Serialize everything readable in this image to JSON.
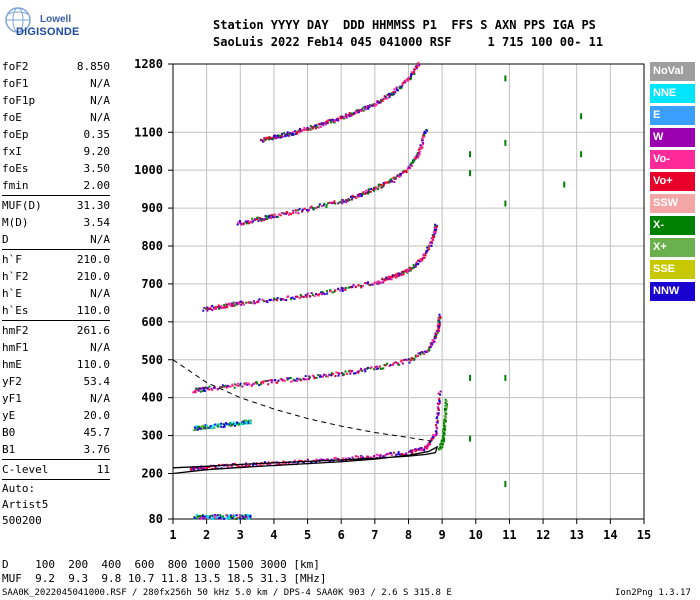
{
  "logo": {
    "line1": "Lowell",
    "line2": "DIGISONDE"
  },
  "header": {
    "row1": "Station YYYY DAY  DDD HHMMSS P1  FFS S AXN PPS IGA PS",
    "row2": "SaoLuis 2022 Feb14 045 041000 RSF     1 715 100 00- 11"
  },
  "parameters": [
    [
      {
        "label": "foF2",
        "value": "8.850"
      },
      {
        "label": "foF1",
        "value": "N/A"
      },
      {
        "label": "foF1p",
        "value": "N/A"
      },
      {
        "label": "foE",
        "value": "N/A"
      },
      {
        "label": "foEp",
        "value": "0.35"
      },
      {
        "label": "fxI",
        "value": "9.20"
      },
      {
        "label": "foEs",
        "value": "3.50"
      },
      {
        "label": "fmin",
        "value": "2.00"
      }
    ],
    [
      {
        "label": "MUF(D)",
        "value": "31.30"
      },
      {
        "label": "M(D)",
        "value": "3.54"
      },
      {
        "label": "D",
        "value": "N/A"
      }
    ],
    [
      {
        "label": "h`F",
        "value": "210.0"
      },
      {
        "label": "h`F2",
        "value": "210.0"
      },
      {
        "label": "h`E",
        "value": "N/A"
      },
      {
        "label": "h`Es",
        "value": "110.0"
      }
    ],
    [
      {
        "label": "hmF2",
        "value": "261.6"
      },
      {
        "label": "hmF1",
        "value": "N/A"
      },
      {
        "label": "hmE",
        "value": "110.0"
      },
      {
        "label": "yF2",
        "value": "53.4"
      },
      {
        "label": "yF1",
        "value": "N/A"
      },
      {
        "label": "yE",
        "value": "20.0"
      },
      {
        "label": "B0",
        "value": "45.7"
      },
      {
        "label": "B1",
        "value": "3.76"
      }
    ],
    [
      {
        "label": "C-level",
        "value": "11"
      }
    ]
  ],
  "auto": {
    "line1": "Auto:",
    "line2": "Artist5",
    "line3": "500200"
  },
  "legend": [
    {
      "label": "NoVal",
      "color": "#9e9e9e"
    },
    {
      "label": "NNE",
      "color": "#00e5ff"
    },
    {
      "label": "E",
      "color": "#3aa0ff"
    },
    {
      "label": "W",
      "color": "#9b00b0"
    },
    {
      "label": "Vo-",
      "color": "#ff2a9a"
    },
    {
      "label": "Vo+",
      "color": "#e8002a"
    },
    {
      "label": "SSW",
      "color": "#f4a6a6"
    },
    {
      "label": "X-",
      "color": "#008000"
    },
    {
      "label": "X+",
      "color": "#6ab04c"
    },
    {
      "label": "SSE",
      "color": "#c8c800"
    },
    {
      "label": "NNW",
      "color": "#1a00d0"
    }
  ],
  "muf_table": {
    "row1": "D    100  200  400  600  800 1000 1500 3000 [km]",
    "row2": "MUF  9.2  9.3  9.8 10.7 11.8 13.5 18.5 31.3 [MHz]"
  },
  "footer": {
    "left": "SAA0K_2022045041000.RSF / 280fx256h 50 kHz 5.0 km / DPS-4 SAA0K 903 / 2.6 S 315.8 E",
    "right": "Ion2Png 1.3.17"
  },
  "chart_data": {
    "type": "scatter",
    "title": "",
    "xlabel": "",
    "ylabel": "",
    "xlim": [
      1,
      15
    ],
    "ylim": [
      80,
      1280
    ],
    "x_ticks": [
      "1",
      "2",
      "3",
      "4",
      "5",
      "6",
      "7",
      "8",
      "9",
      "10",
      "11",
      "12",
      "13",
      "14",
      "15"
    ],
    "y_ticks": [
      "80",
      "200",
      "300",
      "400",
      "500",
      "600",
      "700",
      "800",
      "900",
      "1000",
      "1100",
      "1280"
    ],
    "traces": [
      {
        "name": "F2 1st hop",
        "x": [
          1.5,
          2,
          3,
          4,
          5,
          6,
          7,
          8,
          8.5,
          8.8,
          8.9
        ],
        "y": [
          215,
          218,
          224,
          229,
          234,
          240,
          247,
          258,
          270,
          310,
          420
        ]
      },
      {
        "name": "F2 1st hop X",
        "x": [
          8.9,
          9.0,
          9.05,
          9.1
        ],
        "y": [
          265,
          290,
          330,
          400
        ]
      },
      {
        "name": "F2 2nd hop",
        "x": [
          1.6,
          2,
          3,
          4,
          5,
          6,
          7,
          8,
          8.6,
          8.85,
          8.9
        ],
        "y": [
          420,
          426,
          436,
          445,
          455,
          466,
          480,
          500,
          530,
          580,
          620
        ]
      },
      {
        "name": "F2 3rd hop",
        "x": [
          1.9,
          2.5,
          3,
          4,
          5,
          6,
          7,
          7.5,
          8,
          8.4,
          8.7,
          8.8
        ],
        "y": [
          635,
          645,
          652,
          662,
          672,
          688,
          706,
          720,
          740,
          770,
          820,
          860
        ]
      },
      {
        "name": "F2 4th hop",
        "x": [
          2.9,
          3.5,
          4,
          5,
          6,
          6.5,
          7,
          7.5,
          8,
          8.3,
          8.5
        ],
        "y": [
          862,
          872,
          882,
          900,
          920,
          935,
          955,
          975,
          1010,
          1050,
          1110
        ]
      },
      {
        "name": "F2 5th hop",
        "x": [
          3.6,
          4,
          4.5,
          5,
          5.5,
          6,
          6.5,
          7,
          7.5,
          8,
          8.3
        ],
        "y": [
          1080,
          1090,
          1100,
          1112,
          1126,
          1140,
          1158,
          1178,
          1205,
          1245,
          1285
        ]
      },
      {
        "name": "Es",
        "x": [
          1.6,
          2,
          2.5,
          3,
          3.3
        ],
        "y": [
          88,
          88,
          88,
          88,
          88
        ]
      },
      {
        "name": "Es 2nd",
        "x": [
          1.6,
          2,
          2.5,
          3,
          3.3
        ],
        "y": [
          322,
          326,
          330,
          335,
          340
        ]
      }
    ],
    "profile_solid": {
      "x": [
        1,
        2,
        3,
        4,
        5,
        6,
        7,
        8,
        8.6,
        8.85,
        8.8,
        8.5,
        8,
        7,
        6,
        5,
        4,
        3,
        2,
        1
      ],
      "y": [
        200,
        210,
        216,
        221,
        226,
        231,
        238,
        248,
        258,
        270,
        255,
        250,
        246,
        240,
        236,
        232,
        228,
        224,
        219,
        215
      ]
    },
    "profile_dashed": {
      "x": [
        1,
        2,
        3,
        4,
        5,
        6,
        7,
        8,
        8.7
      ],
      "y": [
        500,
        440,
        400,
        370,
        345,
        325,
        308,
        295,
        285
      ]
    }
  }
}
